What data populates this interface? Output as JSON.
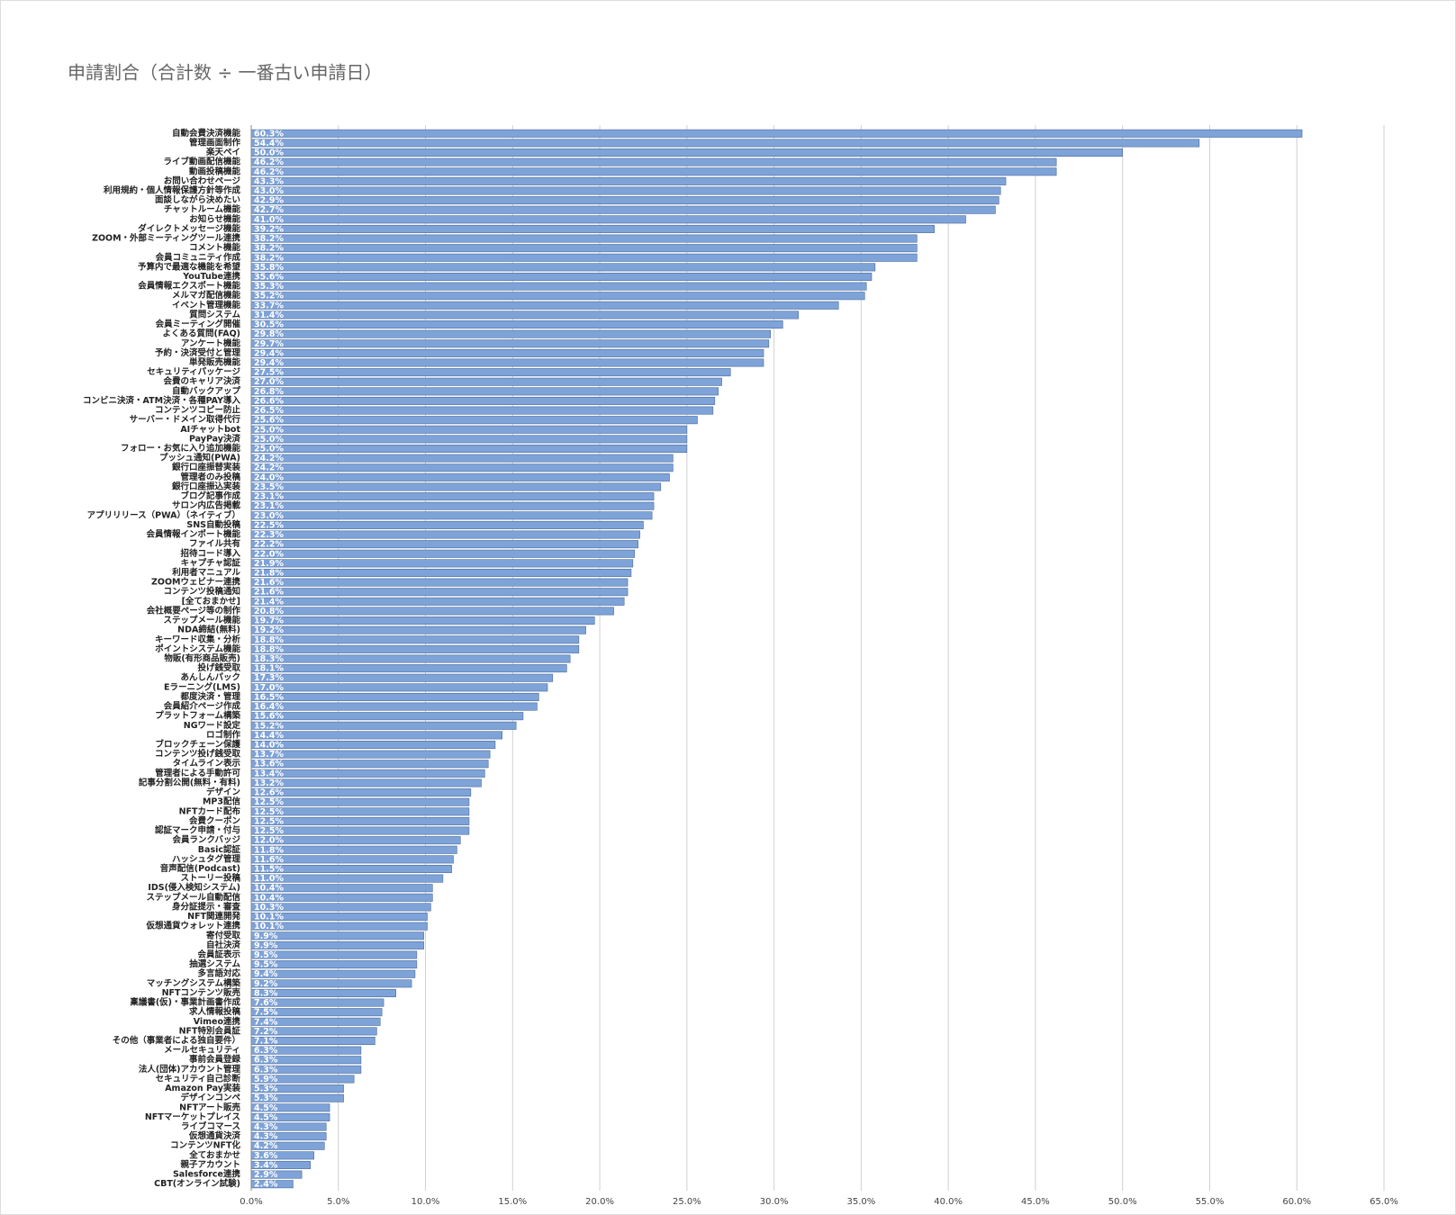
{
  "chart_data": {
    "type": "barh",
    "title": "申請割合（合計数 ÷ 一番古い申請日）",
    "categories": [
      "自動会費決済機能",
      "管理画面制作",
      "楽天ペイ",
      "ライブ動画配信機能",
      "動画投稿機能",
      "お問い合わせページ",
      "利用規約・個人情報保護方針等作成",
      "面談しながら決めたい",
      "チャットルーム機能",
      "お知らせ機能",
      "ダイレクトメッセージ機能",
      "ZOOM・外部ミーティングツール連携",
      "コメント機能",
      "会員コミュニティ作成",
      "予算内で最適な機能を希望",
      "YouTube連携",
      "会員情報エクスポート機能",
      "メルマガ配信機能",
      "イベント管理機能",
      "質問システム",
      "会員ミーティング開催",
      "よくある質問(FAQ)",
      "アンケート機能",
      "予約・決済受付と管理",
      "単発販売機能",
      "セキュリティパッケージ",
      "会費のキャリア決済",
      "自動バックアップ",
      "コンビニ決済・ATM決済・各種PAY導入",
      "コンテンツコピー防止",
      "サーバー・ドメイン取得代行",
      "AIチャットbot",
      "PayPay決済",
      "フォロー・お気に入り追加機能",
      "プッシュ通知(PWA)",
      "銀行口座振替実装",
      "管理者のみ投稿",
      "銀行口座振込実装",
      "ブログ記事作成",
      "サロン内広告掲載",
      "アプリリリース（PWA）（ネイティブ）",
      "SNS自動投稿",
      "会員情報インポート機能",
      "ファイル共有",
      "招待コード導入",
      "キャプチャ認証",
      "利用者マニュアル",
      "ZOOMウェビナー連携",
      "コンテンツ投稿通知",
      "[全ておまかせ]",
      "会社概要ページ等の制作",
      "ステップメール機能",
      "NDA締結(無料)",
      "キーワード収集・分析",
      "ポイントシステム機能",
      "物販(有形商品販売)",
      "投げ銭受取",
      "あんしんパック",
      "Eラーニング(LMS)",
      "都度決済・管理",
      "会員紹介ページ作成",
      "プラットフォーム構築",
      "NGワード設定",
      "ロゴ制作",
      "ブロックチェーン保護",
      "コンテンツ投げ銭受取",
      "タイムライン表示",
      "管理者による手動許可",
      "記事分割公開(無料・有料)",
      "デザイン",
      "MP3配信",
      "NFTカード配布",
      "会費クーポン",
      "認証マーク申請・付与",
      "会員ランクバッジ",
      "Basic認証",
      "ハッシュタグ管理",
      "音声配信(Podcast)",
      "ストーリー投稿",
      "IDS(侵入検知システム)",
      "ステップメール自動配信",
      "身分証提示・審査",
      "NFT関連開発",
      "仮想通貨ウォレット連携",
      "寄付受取",
      "自社決済",
      "会員証表示",
      "抽選システム",
      "多言語対応",
      "マッチングシステム構築",
      "NFTコンテンツ販売",
      "稟議書(仮)・事業計画書作成",
      "求人情報投稿",
      "Vimeo連携",
      "NFT特別会員証",
      "その他（事業者による独自要件）",
      "メールセキュリティ",
      "事前会員登録",
      "法人(団体)アカウント管理",
      "セキュリティ自己診断",
      "Amazon Pay実装",
      "デザインコンペ",
      "NFTアート販売",
      "NFTマーケットプレイス",
      "ライブコマース",
      "仮想通貨決済",
      "コンテンツNFT化",
      "全ておまかせ",
      "親子アカウント",
      "Salesforce連携",
      "CBT(オンライン試験)"
    ],
    "values": [
      60.3,
      54.4,
      50.0,
      46.2,
      46.2,
      43.3,
      43.0,
      42.9,
      42.7,
      41.0,
      39.2,
      38.2,
      38.2,
      38.2,
      35.8,
      35.6,
      35.3,
      35.2,
      33.7,
      31.4,
      30.5,
      29.8,
      29.7,
      29.4,
      29.4,
      27.5,
      27.0,
      26.8,
      26.6,
      26.5,
      25.6,
      25.0,
      25.0,
      25.0,
      24.2,
      24.2,
      24.0,
      23.5,
      23.1,
      23.1,
      23.0,
      22.5,
      22.3,
      22.2,
      22.0,
      21.9,
      21.8,
      21.6,
      21.6,
      21.4,
      20.8,
      19.7,
      19.2,
      18.8,
      18.8,
      18.3,
      18.1,
      17.3,
      17.0,
      16.5,
      16.4,
      15.6,
      15.2,
      14.4,
      14.0,
      13.7,
      13.6,
      13.4,
      13.2,
      12.6,
      12.5,
      12.5,
      12.5,
      12.5,
      12.0,
      11.8,
      11.6,
      11.5,
      11.0,
      10.4,
      10.4,
      10.3,
      10.1,
      10.1,
      9.9,
      9.9,
      9.5,
      9.5,
      9.4,
      9.2,
      8.3,
      7.6,
      7.5,
      7.4,
      7.2,
      7.1,
      6.3,
      6.3,
      6.3,
      5.9,
      5.3,
      5.3,
      4.5,
      4.5,
      4.3,
      4.3,
      4.2,
      3.6,
      3.4,
      2.9,
      2.4
    ],
    "value_labels": [
      "60.3%",
      "54.4%",
      "50.0%",
      "46.2%",
      "46.2%",
      "43.3%",
      "43.0%",
      "42.9%",
      "42.7%",
      "41.0%",
      "39.2%",
      "38.2%",
      "38.2%",
      "38.2%",
      "35.8%",
      "35.6%",
      "35.3%",
      "35.2%",
      "33.7%",
      "31.4%",
      "30.5%",
      "29.8%",
      "29.7%",
      "29.4%",
      "29.4%",
      "27.5%",
      "27.0%",
      "26.8%",
      "26.6%",
      "26.5%",
      "25.6%",
      "25.0%",
      "25.0%",
      "25.0%",
      "24.2%",
      "24.2%",
      "24.0%",
      "23.5%",
      "23.1%",
      "23.1%",
      "23.0%",
      "22.5%",
      "22.3%",
      "22.2%",
      "22.0%",
      "21.9%",
      "21.8%",
      "21.6%",
      "21.6%",
      "21.4%",
      "20.8%",
      "19.7%",
      "19.2%",
      "18.8%",
      "18.8%",
      "18.3%",
      "18.1%",
      "17.3%",
      "17.0%",
      "16.5%",
      "16.4%",
      "15.6%",
      "15.2%",
      "14.4%",
      "14.0%",
      "13.7%",
      "13.6%",
      "13.4%",
      "13.2%",
      "12.6%",
      "12.5%",
      "12.5%",
      "12.5%",
      "12.5%",
      "12.0%",
      "11.8%",
      "11.6%",
      "11.5%",
      "11.0%",
      "10.4%",
      "10.4%",
      "10.3%",
      "10.1%",
      "10.1%",
      "9.9%",
      "9.9%",
      "9.5%",
      "9.5%",
      "9.4%",
      "9.2%",
      "8.3%",
      "7.6%",
      "7.5%",
      "7.4%",
      "7.2%",
      "7.1%",
      "6.3%",
      "6.3%",
      "6.3%",
      "5.9%",
      "5.3%",
      "5.3%",
      "4.5%",
      "4.5%",
      "4.3%",
      "4.3%",
      "4.2%",
      "3.6%",
      "3.4%",
      "2.9%",
      "2.4%"
    ],
    "color": "#7ea3d8",
    "xlim": [
      0,
      65
    ],
    "xticks": [
      {
        "value": 0,
        "label": "0.0%"
      },
      {
        "value": 5,
        "label": "5.0%"
      },
      {
        "value": 10,
        "label": "10.0%"
      },
      {
        "value": 15,
        "label": "15.0%"
      },
      {
        "value": 20,
        "label": "20.0%"
      },
      {
        "value": 25,
        "label": "25.0%"
      },
      {
        "value": 30,
        "label": "30.0%"
      },
      {
        "value": 35,
        "label": "35.0%"
      },
      {
        "value": 40,
        "label": "40.0%"
      },
      {
        "value": 45,
        "label": "45.0%"
      },
      {
        "value": 50,
        "label": "50.0%"
      },
      {
        "value": 55,
        "label": "55.0%"
      },
      {
        "value": 60,
        "label": "60.0%"
      },
      {
        "value": 65,
        "label": "65.0%"
      }
    ],
    "grid": true
  }
}
